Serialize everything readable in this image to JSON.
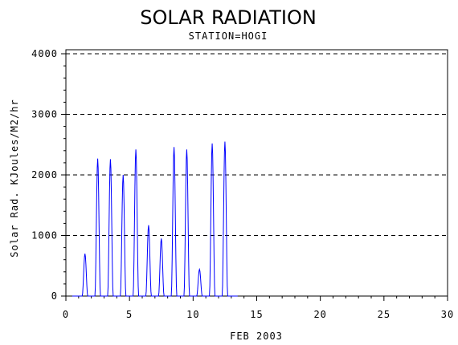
{
  "chart_data": {
    "type": "line",
    "title": "SOLAR RADIATION",
    "subtitle": "STATION=HOGI",
    "xlabel": "FEB 2003",
    "ylabel": "Solar Rad. KJoules/M2/hr",
    "xlim": [
      0,
      30
    ],
    "ylim": [
      0,
      4000
    ],
    "xticks": [
      0,
      5,
      10,
      15,
      20,
      25,
      30
    ],
    "yticks": [
      0,
      1000,
      2000,
      3000,
      4000
    ],
    "grid": "horizontal-dashed",
    "series_color": "#0000ff",
    "daily_peaks": [
      {
        "x": 1.5,
        "y": 700
      },
      {
        "x": 2.5,
        "y": 2270
      },
      {
        "x": 3.5,
        "y": 2260
      },
      {
        "x": 4.5,
        "y": 2000
      },
      {
        "x": 5.5,
        "y": 2420
      },
      {
        "x": 6.5,
        "y": 1170
      },
      {
        "x": 7.5,
        "y": 950
      },
      {
        "x": 8.5,
        "y": 2460
      },
      {
        "x": 9.5,
        "y": 2420
      },
      {
        "x": 10.5,
        "y": 440
      },
      {
        "x": 11.5,
        "y": 2520
      },
      {
        "x": 12.5,
        "y": 2550
      }
    ],
    "data_end": 13.5
  }
}
